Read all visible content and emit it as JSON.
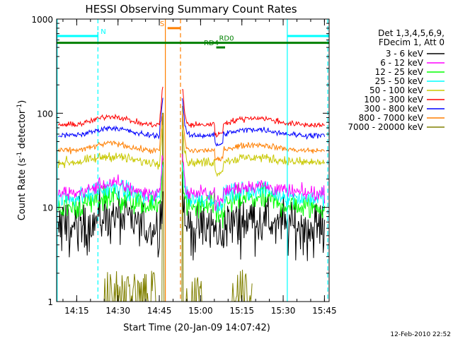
{
  "chart_data": {
    "type": "line",
    "title": "HESSI Observing Summary Count Rates",
    "xlabel": "Start Time (20-Jan-09 14:07:42)",
    "ylabel": "Count Rate (s",
    "ylabel_sup1": "-1",
    "ylabel_mid": " detector",
    "ylabel_sup2": "-1",
    "ylabel_end": ")",
    "y_scale": "log",
    "ylim": [
      1,
      1000
    ],
    "xlim_minutes": [
      0,
      99
    ],
    "y_ticks": [
      "1",
      "10",
      "100",
      "1000"
    ],
    "x_ticks": [
      {
        "label": "14:15",
        "min": 7.3
      },
      {
        "label": "14:30",
        "min": 22.3
      },
      {
        "label": "14:45",
        "min": 37.3
      },
      {
        "label": "15:00",
        "min": 52.3
      },
      {
        "label": "15:15",
        "min": 67.3
      },
      {
        "label": "15:30",
        "min": 82.3
      },
      {
        "label": "15:45",
        "min": 97.3
      }
    ],
    "legend_header": [
      "Det 1,3,4,5,6,9,",
      "FDecim 1, Att 0"
    ],
    "series": [
      {
        "name": "3 - 6 keV",
        "color": "#000000",
        "base": 6.0,
        "amp": 2.0,
        "noise": 0.14
      },
      {
        "name": "6 - 12 keV",
        "color": "#ff00ff",
        "base": 14.0,
        "amp": 4.0,
        "noise": 0.04
      },
      {
        "name": "12 - 25 keV",
        "color": "#00ff00",
        "base": 10.0,
        "amp": 3.0,
        "noise": 0.07
      },
      {
        "name": "25 - 50 keV",
        "color": "#00ffff",
        "base": 12.5,
        "amp": 3.5,
        "noise": 0.05
      },
      {
        "name": "50 - 100 keV",
        "color": "#c8c800",
        "base": 30.0,
        "amp": 5.0,
        "noise": 0.025
      },
      {
        "name": "100 - 300 keV",
        "color": "#ff0000",
        "base": 75.0,
        "amp": 18.0,
        "noise": 0.015
      },
      {
        "name": "300 - 800 keV",
        "color": "#0000ff",
        "base": 58.0,
        "amp": 12.0,
        "noise": 0.015
      },
      {
        "name": "800 - 7000 keV",
        "color": "#ff7f00",
        "base": 40.0,
        "amp": 8.0,
        "noise": 0.015
      },
      {
        "name": "7000 - 20000 keV",
        "color": "#808000",
        "base": 1.0,
        "amp": 0,
        "noise": 0
      }
    ],
    "annotations": [
      {
        "label": "N",
        "color": "#00ffff",
        "y": 660,
        "x0": 0,
        "x1": 15,
        "label_min": 16,
        "tick_min": 15
      },
      {
        "label": "N",
        "color": "#00ffff",
        "y": 660,
        "x0": 83.8,
        "x1": 99,
        "label_min": null,
        "tick_min": null
      },
      {
        "label": "S",
        "color": "#ff7f00",
        "y": 800,
        "x0": 40.3,
        "x1": 45,
        "label_min": 37.5,
        "tick_min": null
      },
      {
        "label": "RD0",
        "color": "#008000",
        "y": 560,
        "x0": 0,
        "x1": 99,
        "label_min": 59,
        "tick_min": null
      },
      {
        "label": "RD4",
        "color": "#008000",
        "y": 500,
        "x0": 58,
        "x1": 61.2,
        "label_min": 53.5,
        "tick_min": null
      }
    ],
    "vlines": [
      {
        "min": 0.2,
        "color": "#00ffff",
        "dashed": false
      },
      {
        "min": 15.0,
        "color": "#00ffff",
        "dashed": true
      },
      {
        "min": 83.8,
        "color": "#00ffff",
        "dashed": false
      },
      {
        "min": 98.5,
        "color": "#00ffff",
        "dashed": true
      },
      {
        "min": 39.5,
        "color": "#ff7f00",
        "dashed": false
      },
      {
        "min": 45.0,
        "color": "#ff7f00",
        "dashed": true
      }
    ],
    "grid": false,
    "legend_position": "right"
  },
  "footer": {
    "timestamp": "12-Feb-2010 22:52"
  }
}
